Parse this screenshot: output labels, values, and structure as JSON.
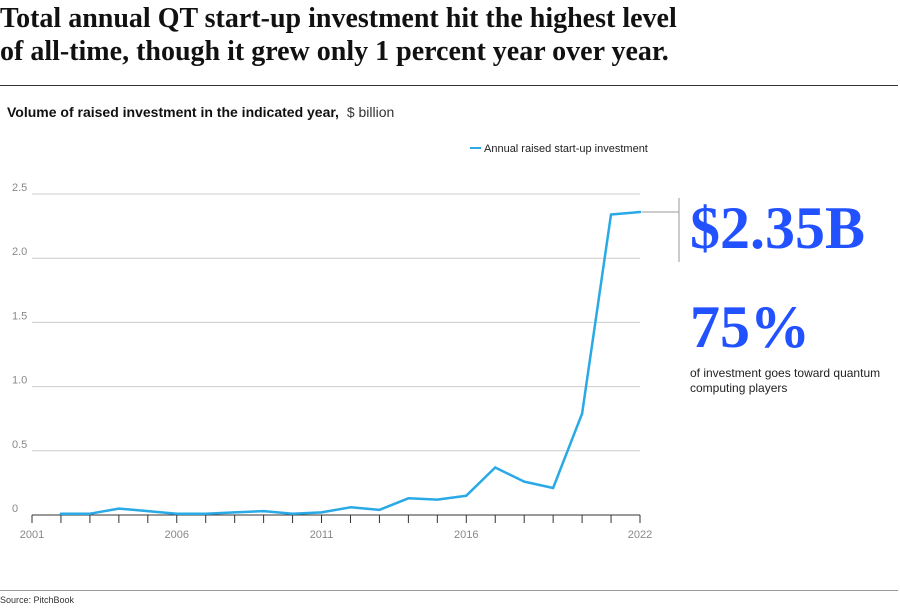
{
  "headline": {
    "line1": "Total annual QT start-up investment hit the highest level",
    "line2": "of all-time, though it grew only 1 percent year over year."
  },
  "subtitle": {
    "main": "Volume of raised investment in the indicated year,",
    "unit": "$ billion"
  },
  "callout": {
    "total": "$2.35B",
    "share": "75%",
    "share_caption": "of investment goes toward quantum computing players"
  },
  "source": "Source: PitchBook",
  "colors": {
    "series": "#29a9e6",
    "accent": "#2251ff",
    "grid": "#cccccc",
    "axis": "#333333",
    "tick_label": "#888888"
  },
  "chart_data": {
    "type": "line",
    "title": "Volume of raised investment in the indicated year, $ billion",
    "x_tick_labels": [
      "2001",
      "2006",
      "2011",
      "2016",
      "2022"
    ],
    "y_tick_labels": [
      "0",
      "0.5",
      "1.0",
      "1.5",
      "2.0",
      "2.5"
    ],
    "ylim": [
      0,
      2.5
    ],
    "xlim": [
      2001,
      2022
    ],
    "grid": true,
    "legend_position": "top-right",
    "series": [
      {
        "name": "Annual raised start-up investment",
        "color": "#29a9e6",
        "x": [
          2002,
          2003,
          2004,
          2005,
          2006,
          2007,
          2008,
          2009,
          2010,
          2011,
          2012,
          2013,
          2014,
          2015,
          2016,
          2017,
          2018,
          2019,
          2020,
          2021,
          2022
        ],
        "y": [
          0.01,
          0.01,
          0.05,
          0.03,
          0.01,
          0.01,
          0.02,
          0.03,
          0.01,
          0.02,
          0.06,
          0.04,
          0.13,
          0.12,
          0.15,
          0.37,
          0.26,
          0.21,
          0.79,
          2.34,
          2.36
        ]
      }
    ]
  }
}
